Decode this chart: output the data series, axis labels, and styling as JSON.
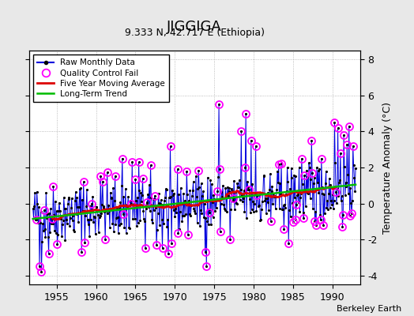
{
  "title": "JIGGIGA",
  "subtitle": "9.333 N, 42.717 E (Ethiopia)",
  "ylabel": "Temperature Anomaly (°C)",
  "credit": "Berkeley Earth",
  "xlim": [
    1951.5,
    1993.5
  ],
  "ylim": [
    -4.5,
    8.5
  ],
  "yticks": [
    -4,
    -2,
    0,
    2,
    4,
    6,
    8
  ],
  "xticks": [
    1955,
    1960,
    1965,
    1970,
    1975,
    1980,
    1985,
    1990
  ],
  "raw_color": "#0000dd",
  "moving_avg_color": "#dd0000",
  "trend_color": "#00bb00",
  "qc_fail_color": "#ff00ff",
  "fig_bg": "#e8e8e8",
  "plot_bg": "#ffffff"
}
